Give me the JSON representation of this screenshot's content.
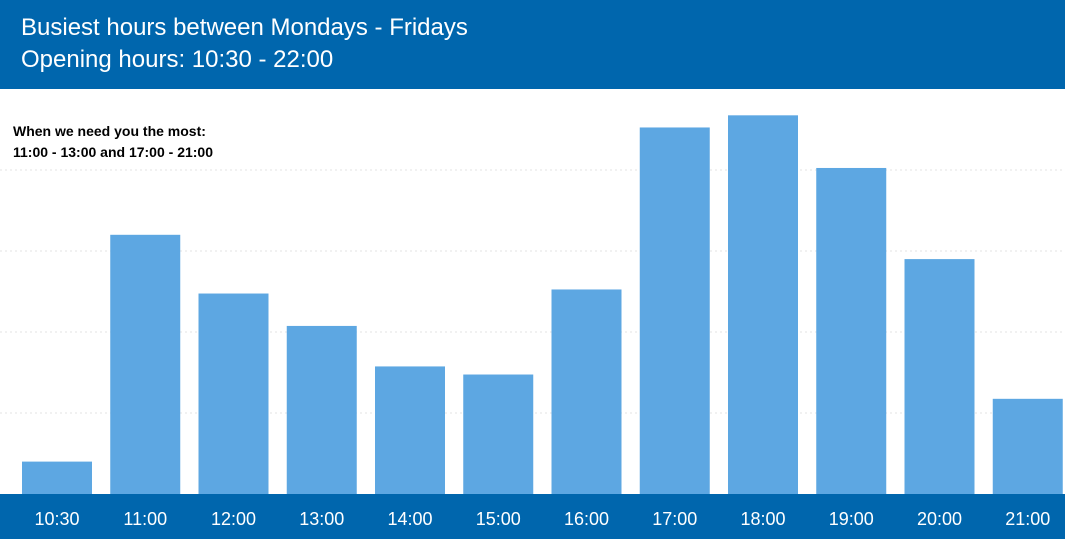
{
  "header": {
    "title": "Busiest hours between Mondays - Fridays",
    "subtitle": "Opening hours: 10:30 - 22:00"
  },
  "annotation": {
    "line1": "When we need you the most:",
    "line2": "11:00 - 13:00 and 17:00 - 21:00"
  },
  "colors": {
    "header_bg": "#0066ad",
    "bar": "#5da7e2",
    "gridline": "#e3e3e3"
  },
  "chart_data": {
    "type": "bar",
    "categories": [
      "10:30",
      "11:00",
      "12:00",
      "13:00",
      "14:00",
      "15:00",
      "16:00",
      "17:00",
      "18:00",
      "19:00",
      "20:00",
      "21:00"
    ],
    "values": [
      8,
      64,
      49.5,
      41.5,
      31.5,
      29.5,
      50.5,
      90.5,
      93.5,
      80.5,
      58,
      23.5
    ],
    "ylim": [
      0,
      100
    ],
    "grid": true,
    "title": "Busiest hours between Mondays - Fridays",
    "subtitle": "Opening hours: 10:30 - 22:00",
    "xlabel": "",
    "ylabel": ""
  }
}
